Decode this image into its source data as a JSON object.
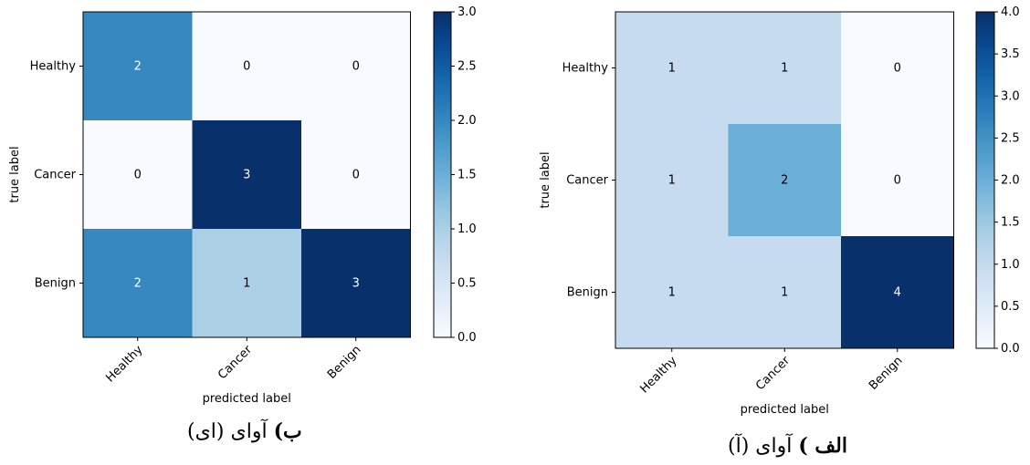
{
  "chart_data": [
    {
      "type": "heatmap",
      "caption_letter": "ب)",
      "caption_text": "آوای (ای)",
      "xlabel": "predicted label",
      "ylabel": "true label",
      "x_categories": [
        "Healthy",
        "Cancer",
        "Benign"
      ],
      "y_categories": [
        "Healthy",
        "Cancer",
        "Benign"
      ],
      "values": [
        [
          2,
          0,
          0
        ],
        [
          0,
          3,
          0
        ],
        [
          2,
          1,
          3
        ]
      ],
      "colorbar": {
        "min": 0.0,
        "max": 3.0,
        "ticks": [
          "0.0",
          "0.5",
          "1.0",
          "1.5",
          "2.0",
          "2.5",
          "3.0"
        ]
      },
      "colormap": "Blues"
    },
    {
      "type": "heatmap",
      "caption_letter": "الف )",
      "caption_text": "آوای (آ)",
      "xlabel": "predicted label",
      "ylabel": "true label",
      "x_categories": [
        "Healthy",
        "Cancer",
        "Benign"
      ],
      "y_categories": [
        "Healthy",
        "Cancer",
        "Benign"
      ],
      "values": [
        [
          1,
          1,
          0
        ],
        [
          1,
          2,
          0
        ],
        [
          1,
          1,
          4
        ]
      ],
      "colorbar": {
        "min": 0.0,
        "max": 4.0,
        "ticks": [
          "0.0",
          "0.5",
          "1.0",
          "1.5",
          "2.0",
          "2.5",
          "3.0",
          "3.5",
          "4.0"
        ]
      },
      "colormap": "Blues"
    }
  ]
}
